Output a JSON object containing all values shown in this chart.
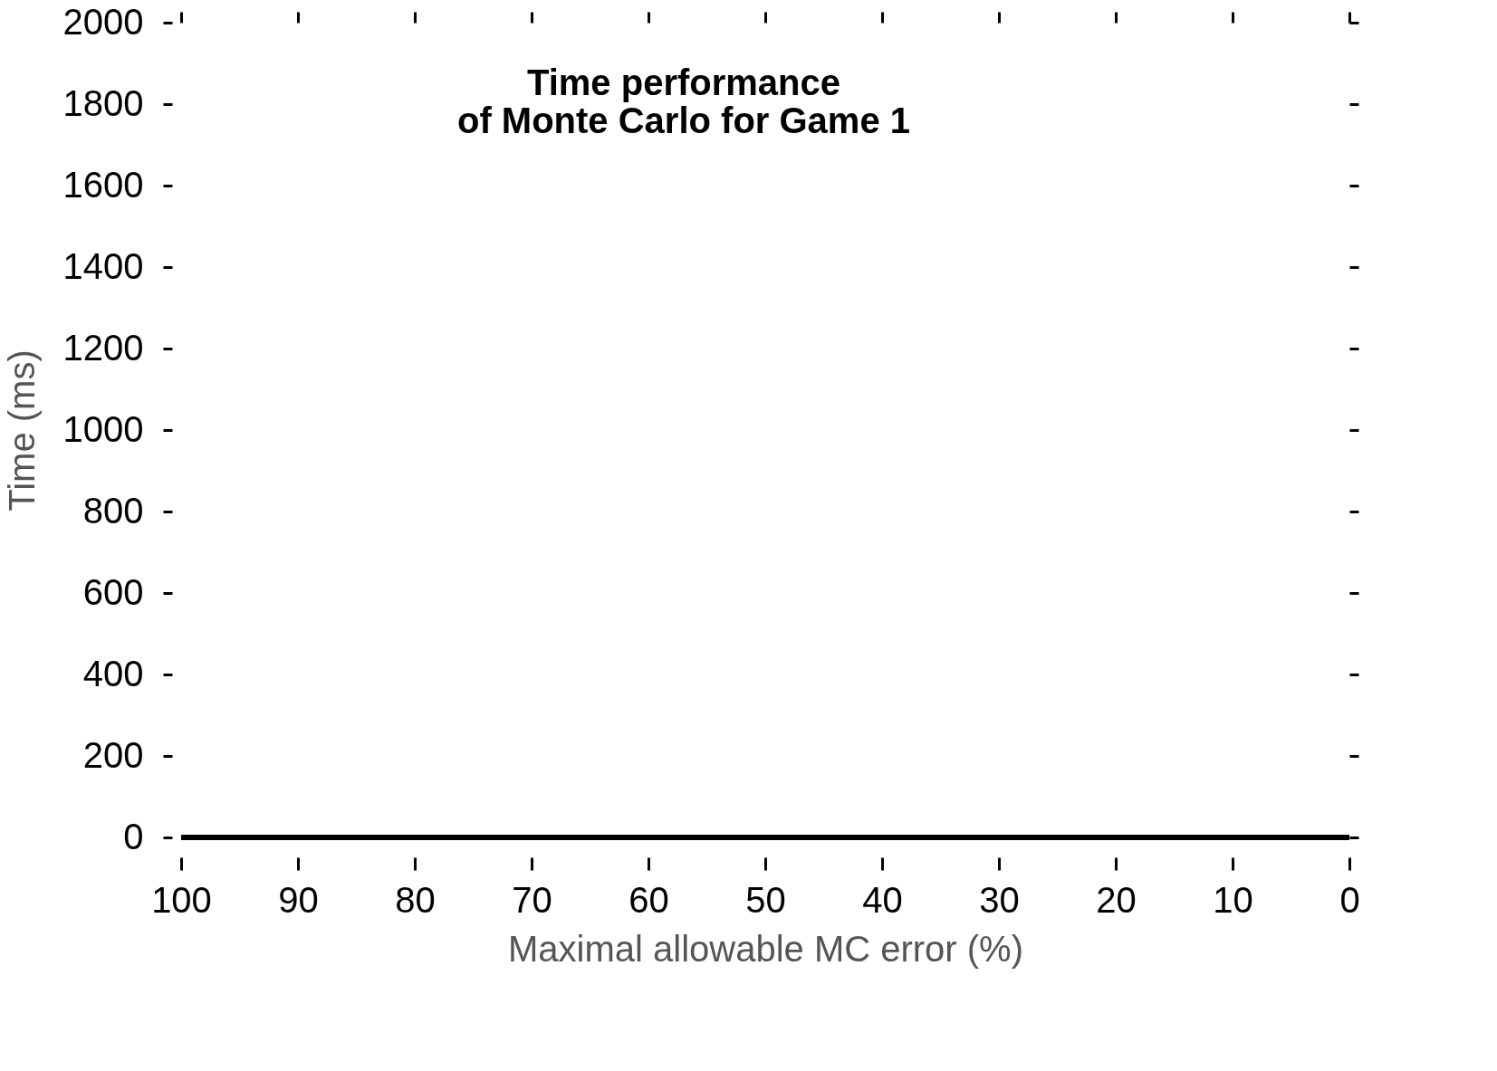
{
  "chart_data": {
    "type": "line",
    "title": "Time performance\nof Monte Carlo for Game 1",
    "xlabel": "Maximal allowable MC error (%)",
    "ylabel": "Time (ms)",
    "x": [
      100,
      0
    ],
    "series": [
      {
        "color": "#000000",
        "values": [
          0,
          0
        ]
      }
    ],
    "xlim": [
      100,
      0
    ],
    "xticks": [
      100,
      90,
      80,
      70,
      60,
      50,
      40,
      30,
      20,
      10,
      0
    ],
    "ylim": [
      0,
      2000
    ],
    "yticks": [
      0,
      200,
      400,
      600,
      800,
      1000,
      1200,
      1400,
      1600,
      1800,
      2000
    ],
    "grid": false,
    "legend": false,
    "marker": "none",
    "line_style": "solid"
  }
}
